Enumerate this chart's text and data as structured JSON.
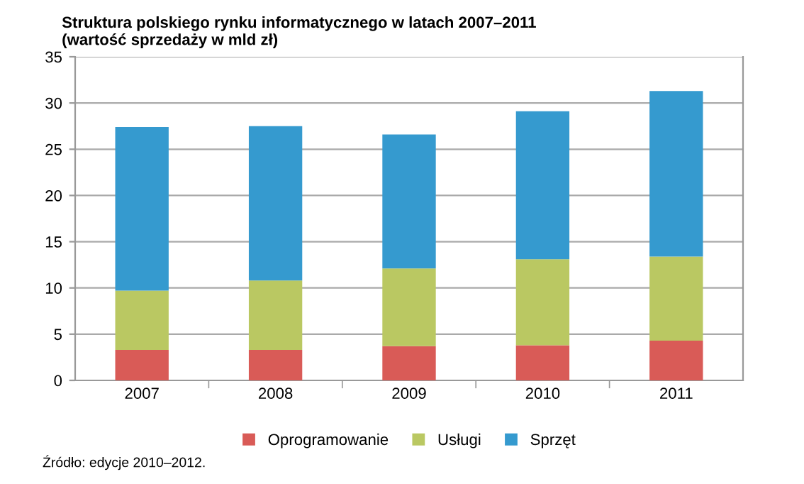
{
  "chart_data": {
    "type": "bar",
    "stacked": true,
    "title": "Struktura polskiego rynku informatycznego w latach 2007–2011\n(wartość sprzedaży w mld zł)",
    "categories": [
      "2007",
      "2008",
      "2009",
      "2010",
      "2011"
    ],
    "series": [
      {
        "name": "Oprogramowanie",
        "color": "#d95b57",
        "values": [
          3.3,
          3.3,
          3.7,
          3.8,
          4.3
        ]
      },
      {
        "name": "Usługi",
        "color": "#bac862",
        "values": [
          6.4,
          7.5,
          8.4,
          9.3,
          9.1
        ]
      },
      {
        "name": "Sprzęt",
        "color": "#359acf",
        "values": [
          17.7,
          16.7,
          14.5,
          16.0,
          17.9
        ]
      }
    ],
    "ylim": [
      0,
      35
    ],
    "yticks": [
      0,
      5,
      10,
      15,
      20,
      25,
      30,
      35
    ],
    "grid": "y",
    "legend": "bottom",
    "annotations": [
      "Źródło: edycje 2010–2012."
    ]
  }
}
